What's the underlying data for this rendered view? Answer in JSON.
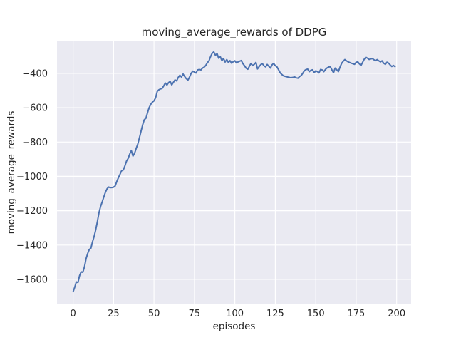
{
  "figure": {
    "title": "moving_average_rewards of DDPG",
    "xlabel": "episodes",
    "ylabel": "moving_average_rewards"
  },
  "chart_data": {
    "type": "line",
    "title": "moving_average_rewards of DDPG",
    "xlabel": "episodes",
    "ylabel": "moving_average_rewards",
    "x_ticks": [
      0,
      25,
      50,
      75,
      100,
      125,
      150,
      175,
      200
    ],
    "x_tick_labels": [
      "0",
      "25",
      "50",
      "75",
      "100",
      "125",
      "150",
      "175",
      "200"
    ],
    "y_ticks": [
      -400,
      -600,
      -800,
      -1000,
      -1200,
      -1400,
      -1600
    ],
    "y_tick_labels": [
      "−400",
      "−600",
      "−800",
      "−1000",
      "−1200",
      "−1400",
      "−1600"
    ],
    "xlim": [
      -9.95,
      208.95
    ],
    "ylim": [
      -1741.5,
      -213.5
    ],
    "grid": true,
    "legend_position": "none",
    "style": {
      "line_color": "#4c72b0",
      "line_width": 2,
      "axes_background": "#eaeaf2",
      "figure_background": "#ffffff",
      "grid_color": "#ffffff",
      "text_color": "#262626"
    },
    "series": [
      {
        "name": "moving_average_rewards",
        "points": [
          [
            0,
            -1672
          ],
          [
            1,
            -1645
          ],
          [
            2,
            -1615
          ],
          [
            3,
            -1618
          ],
          [
            4,
            -1578
          ],
          [
            5,
            -1556
          ],
          [
            6,
            -1559
          ],
          [
            7,
            -1528
          ],
          [
            8,
            -1480
          ],
          [
            9,
            -1450
          ],
          [
            10,
            -1426
          ],
          [
            11,
            -1418
          ],
          [
            12,
            -1382
          ],
          [
            13,
            -1350
          ],
          [
            14,
            -1310
          ],
          [
            15,
            -1265
          ],
          [
            16,
            -1212
          ],
          [
            17,
            -1175
          ],
          [
            18,
            -1148
          ],
          [
            19,
            -1120
          ],
          [
            20,
            -1092
          ],
          [
            21,
            -1072
          ],
          [
            22,
            -1062
          ],
          [
            23,
            -1066
          ],
          [
            24,
            -1065
          ],
          [
            25,
            -1063
          ],
          [
            26,
            -1056
          ],
          [
            27,
            -1030
          ],
          [
            28,
            -1008
          ],
          [
            29,
            -988
          ],
          [
            30,
            -967
          ],
          [
            31,
            -963
          ],
          [
            32,
            -940
          ],
          [
            33,
            -912
          ],
          [
            34,
            -896
          ],
          [
            35,
            -870
          ],
          [
            36,
            -850
          ],
          [
            37,
            -882
          ],
          [
            38,
            -865
          ],
          [
            39,
            -838
          ],
          [
            40,
            -812
          ],
          [
            41,
            -775
          ],
          [
            42,
            -738
          ],
          [
            43,
            -700
          ],
          [
            44,
            -670
          ],
          [
            45,
            -662
          ],
          [
            46,
            -630
          ],
          [
            47,
            -600
          ],
          [
            48,
            -580
          ],
          [
            49,
            -568
          ],
          [
            50,
            -560
          ],
          [
            51,
            -542
          ],
          [
            52,
            -505
          ],
          [
            53,
            -496
          ],
          [
            54,
            -491
          ],
          [
            55,
            -488
          ],
          [
            56,
            -474
          ],
          [
            57,
            -456
          ],
          [
            58,
            -468
          ],
          [
            59,
            -454
          ],
          [
            60,
            -447
          ],
          [
            61,
            -467
          ],
          [
            62,
            -452
          ],
          [
            63,
            -438
          ],
          [
            64,
            -444
          ],
          [
            65,
            -423
          ],
          [
            66,
            -411
          ],
          [
            67,
            -421
          ],
          [
            68,
            -404
          ],
          [
            69,
            -419
          ],
          [
            70,
            -431
          ],
          [
            71,
            -439
          ],
          [
            72,
            -421
          ],
          [
            73,
            -399
          ],
          [
            74,
            -387
          ],
          [
            75,
            -393
          ],
          [
            76,
            -398
          ],
          [
            77,
            -380
          ],
          [
            78,
            -377
          ],
          [
            79,
            -380
          ],
          [
            80,
            -369
          ],
          [
            81,
            -364
          ],
          [
            82,
            -354
          ],
          [
            83,
            -338
          ],
          [
            84,
            -327
          ],
          [
            85,
            -302
          ],
          [
            86,
            -283
          ],
          [
            87,
            -275
          ],
          [
            88,
            -295
          ],
          [
            89,
            -285
          ],
          [
            90,
            -312
          ],
          [
            91,
            -303
          ],
          [
            92,
            -326
          ],
          [
            93,
            -313
          ],
          [
            94,
            -334
          ],
          [
            95,
            -320
          ],
          [
            96,
            -337
          ],
          [
            97,
            -326
          ],
          [
            98,
            -341
          ],
          [
            99,
            -332
          ],
          [
            100,
            -327
          ],
          [
            101,
            -339
          ],
          [
            102,
            -333
          ],
          [
            103,
            -329
          ],
          [
            104,
            -325
          ],
          [
            105,
            -344
          ],
          [
            106,
            -356
          ],
          [
            107,
            -370
          ],
          [
            108,
            -376
          ],
          [
            109,
            -358
          ],
          [
            110,
            -342
          ],
          [
            111,
            -355
          ],
          [
            112,
            -347
          ],
          [
            113,
            -336
          ],
          [
            114,
            -374
          ],
          [
            115,
            -361
          ],
          [
            116,
            -349
          ],
          [
            117,
            -343
          ],
          [
            118,
            -356
          ],
          [
            119,
            -362
          ],
          [
            120,
            -348
          ],
          [
            121,
            -359
          ],
          [
            122,
            -369
          ],
          [
            123,
            -350
          ],
          [
            124,
            -342
          ],
          [
            125,
            -355
          ],
          [
            126,
            -362
          ],
          [
            127,
            -378
          ],
          [
            128,
            -396
          ],
          [
            129,
            -406
          ],
          [
            130,
            -414
          ],
          [
            131,
            -417
          ],
          [
            132,
            -420
          ],
          [
            133,
            -422
          ],
          [
            134,
            -424
          ],
          [
            135,
            -425
          ],
          [
            136,
            -423
          ],
          [
            137,
            -421
          ],
          [
            138,
            -426
          ],
          [
            139,
            -428
          ],
          [
            140,
            -418
          ],
          [
            141,
            -413
          ],
          [
            142,
            -399
          ],
          [
            143,
            -384
          ],
          [
            144,
            -378
          ],
          [
            145,
            -375
          ],
          [
            146,
            -390
          ],
          [
            147,
            -382
          ],
          [
            148,
            -379
          ],
          [
            149,
            -396
          ],
          [
            150,
            -385
          ],
          [
            151,
            -389
          ],
          [
            152,
            -397
          ],
          [
            153,
            -377
          ],
          [
            154,
            -380
          ],
          [
            155,
            -390
          ],
          [
            156,
            -377
          ],
          [
            157,
            -368
          ],
          [
            158,
            -363
          ],
          [
            159,
            -361
          ],
          [
            160,
            -380
          ],
          [
            161,
            -396
          ],
          [
            162,
            -369
          ],
          [
            163,
            -379
          ],
          [
            164,
            -390
          ],
          [
            165,
            -364
          ],
          [
            166,
            -342
          ],
          [
            167,
            -329
          ],
          [
            168,
            -320
          ],
          [
            169,
            -327
          ],
          [
            170,
            -333
          ],
          [
            171,
            -337
          ],
          [
            172,
            -341
          ],
          [
            173,
            -344
          ],
          [
            174,
            -347
          ],
          [
            175,
            -335
          ],
          [
            176,
            -333
          ],
          [
            177,
            -345
          ],
          [
            178,
            -354
          ],
          [
            179,
            -335
          ],
          [
            180,
            -317
          ],
          [
            181,
            -306
          ],
          [
            182,
            -312
          ],
          [
            183,
            -319
          ],
          [
            184,
            -316
          ],
          [
            185,
            -313
          ],
          [
            186,
            -321
          ],
          [
            187,
            -326
          ],
          [
            188,
            -320
          ],
          [
            189,
            -327
          ],
          [
            190,
            -333
          ],
          [
            191,
            -327
          ],
          [
            192,
            -341
          ],
          [
            193,
            -347
          ],
          [
            194,
            -335
          ],
          [
            195,
            -340
          ],
          [
            196,
            -351
          ],
          [
            197,
            -360
          ],
          [
            198,
            -354
          ],
          [
            199,
            -361
          ]
        ]
      }
    ]
  }
}
